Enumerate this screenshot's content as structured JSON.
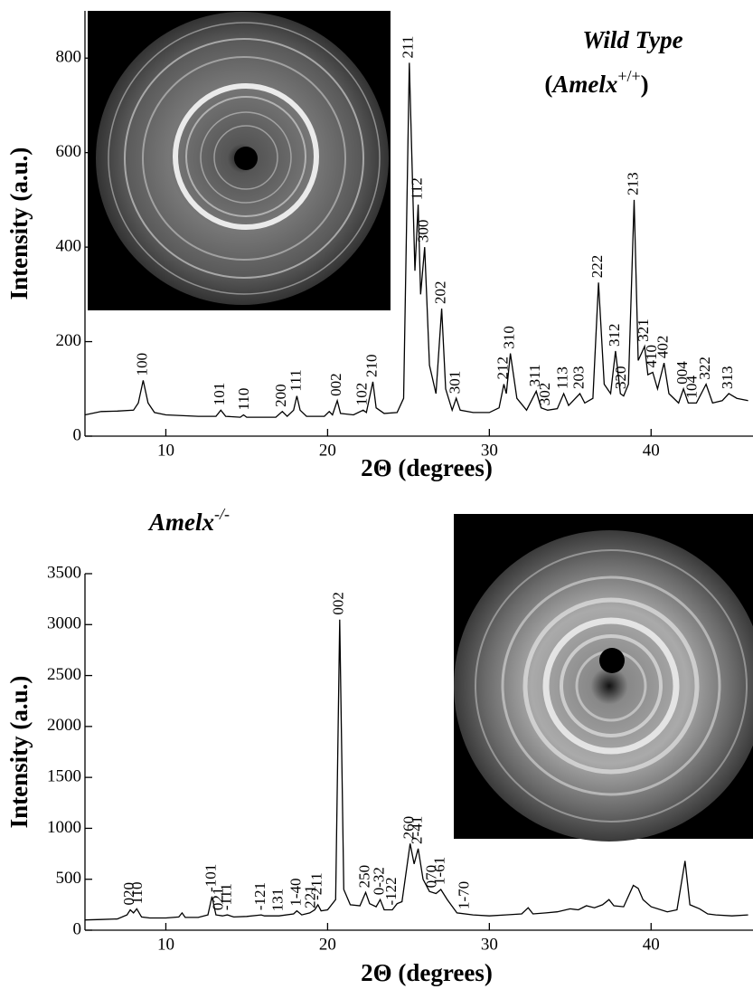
{
  "chart_data": [
    {
      "type": "line",
      "color": "#000000",
      "x_label": "2Θ (degrees)",
      "y_label": "Intensity (a.u.)",
      "xlim": [
        5,
        46.3
      ],
      "ylim": [
        0,
        900
      ],
      "xticks": [
        10,
        20,
        30,
        40
      ],
      "yticks": [
        0,
        200,
        400,
        600,
        800
      ],
      "annotation": "Wild Type",
      "genotype": {
        "prefix": "(",
        "name": "Amelx",
        "sup": "+/+",
        "suffix": ")"
      },
      "x": [
        5,
        6,
        7,
        8,
        8.3,
        8.6,
        8.9,
        9.3,
        10,
        12,
        13.1,
        13.4,
        13.7,
        14.6,
        14.8,
        15,
        16.8,
        17.2,
        17.5,
        17.9,
        18.1,
        18.3,
        18.7,
        19.8,
        20.1,
        20.3,
        20.6,
        20.8,
        21.6,
        22.2,
        22.4,
        22.8,
        23.0,
        23.5,
        24.3,
        24.7,
        25.05,
        25.4,
        25.6,
        25.75,
        26.0,
        26.3,
        26.7,
        27.05,
        27.3,
        27.7,
        27.95,
        28.2,
        29,
        30,
        30.6,
        30.9,
        31.05,
        31.3,
        31.7,
        32.3,
        32.9,
        33.2,
        33.6,
        34.2,
        34.6,
        34.9,
        35.6,
        35.9,
        36.4,
        36.75,
        37.1,
        37.5,
        37.8,
        38.1,
        38.3,
        38.6,
        38.95,
        39.2,
        39.6,
        39.8,
        40.1,
        40.4,
        40.8,
        41.1,
        41.7,
        42.0,
        42.3,
        42.8,
        43.4,
        43.8,
        44.4,
        44.8,
        45.3,
        46
      ],
      "values": [
        45,
        52,
        53,
        55,
        70,
        118,
        70,
        50,
        45,
        42,
        42,
        55,
        42,
        40,
        45,
        40,
        40,
        52,
        42,
        55,
        85,
        55,
        42,
        42,
        52,
        45,
        75,
        48,
        45,
        55,
        50,
        115,
        60,
        48,
        50,
        80,
        790,
        350,
        490,
        300,
        400,
        150,
        90,
        270,
        100,
        55,
        80,
        55,
        50,
        50,
        60,
        110,
        90,
        175,
        80,
        55,
        95,
        60,
        55,
        58,
        90,
        65,
        90,
        70,
        80,
        325,
        110,
        90,
        180,
        90,
        85,
        110,
        500,
        160,
        190,
        130,
        135,
        100,
        155,
        90,
        70,
        100,
        70,
        70,
        110,
        70,
        75,
        90,
        80,
        75
      ],
      "peak_labels": [
        {
          "text": "100",
          "x": 8.6,
          "y": 118
        },
        {
          "text": "101",
          "x": 13.4,
          "y": 55
        },
        {
          "text": "110",
          "x": 14.9,
          "y": 45
        },
        {
          "text": "200",
          "x": 17.2,
          "y": 52
        },
        {
          "text": "111",
          "x": 18.1,
          "y": 85
        },
        {
          "text": "002",
          "x": 20.6,
          "y": 75
        },
        {
          "text": "102",
          "x": 22.2,
          "y": 55
        },
        {
          "text": "210",
          "x": 22.8,
          "y": 115
        },
        {
          "text": "211",
          "x": 25.05,
          "y": 790
        },
        {
          "text": "112",
          "x": 25.6,
          "y": 490
        },
        {
          "text": "300",
          "x": 26.0,
          "y": 400
        },
        {
          "text": "202",
          "x": 27.05,
          "y": 270
        },
        {
          "text": "301",
          "x": 27.95,
          "y": 80
        },
        {
          "text": "212",
          "x": 30.9,
          "y": 110
        },
        {
          "text": "310",
          "x": 31.3,
          "y": 175
        },
        {
          "text": "311",
          "x": 32.9,
          "y": 95
        },
        {
          "text": "302",
          "x": 33.5,
          "y": 55
        },
        {
          "text": "113",
          "x": 34.6,
          "y": 90
        },
        {
          "text": "203",
          "x": 35.6,
          "y": 90
        },
        {
          "text": "222",
          "x": 36.75,
          "y": 325
        },
        {
          "text": "312",
          "x": 37.8,
          "y": 180
        },
        {
          "text": "320",
          "x": 38.2,
          "y": 90
        },
        {
          "text": "213",
          "x": 38.95,
          "y": 500
        },
        {
          "text": "321",
          "x": 39.6,
          "y": 190
        },
        {
          "text": "410",
          "x": 40.1,
          "y": 135
        },
        {
          "text": "402",
          "x": 40.8,
          "y": 155
        },
        {
          "text": "004",
          "x": 42.0,
          "y": 100
        },
        {
          "text": "104",
          "x": 42.6,
          "y": 70
        },
        {
          "text": "322",
          "x": 43.4,
          "y": 110
        },
        {
          "text": "313",
          "x": 44.8,
          "y": 90
        }
      ]
    },
    {
      "type": "line",
      "color": "#000000",
      "x_label": "2Θ (degrees)",
      "y_label": "Intensity (a.u.)",
      "xlim": [
        5,
        46.3
      ],
      "ylim": [
        0,
        3500
      ],
      "xticks": [
        10,
        20,
        30,
        40
      ],
      "yticks": [
        0,
        500,
        1000,
        1500,
        2000,
        2500,
        3000,
        3500
      ],
      "genotype": {
        "name": "Amelx",
        "sup": "-/-"
      },
      "x": [
        5,
        6,
        7,
        7.6,
        7.8,
        8.0,
        8.2,
        8.5,
        9,
        10,
        10.8,
        11,
        11.2,
        12,
        12.6,
        12.85,
        13.1,
        13.5,
        13.8,
        14.2,
        15,
        15.9,
        16.1,
        17,
        17.9,
        18.1,
        18.4,
        18.9,
        19.2,
        19.4,
        19.6,
        20,
        20.5,
        20.75,
        21,
        21.4,
        22,
        22.35,
        22.6,
        23.0,
        23.25,
        23.5,
        24,
        24.3,
        24.6,
        25.1,
        25.35,
        25.6,
        25.9,
        26.3,
        26.7,
        27,
        27.4,
        28,
        29,
        30,
        31,
        32,
        32.4,
        32.7,
        33.5,
        34.2,
        35,
        35.5,
        36,
        36.5,
        37,
        37.4,
        37.7,
        38.3,
        38.9,
        39.2,
        39.5,
        40,
        41,
        41.6,
        42.1,
        42.4,
        43,
        43.5,
        44,
        45,
        46
      ],
      "values": [
        100,
        105,
        110,
        150,
        200,
        170,
        210,
        130,
        120,
        120,
        130,
        170,
        125,
        125,
        150,
        330,
        150,
        140,
        150,
        130,
        135,
        150,
        140,
        140,
        160,
        190,
        150,
        170,
        200,
        250,
        190,
        200,
        300,
        3050,
        400,
        250,
        240,
        370,
        260,
        230,
        300,
        200,
        200,
        260,
        280,
        850,
        650,
        800,
        500,
        380,
        360,
        400,
        300,
        170,
        150,
        140,
        150,
        160,
        220,
        160,
        170,
        180,
        210,
        200,
        240,
        220,
        250,
        300,
        240,
        230,
        440,
        410,
        300,
        230,
        180,
        200,
        680,
        250,
        210,
        160,
        150,
        140,
        150
      ],
      "peak_labels": [
        {
          "text": "020",
          "x": 7.8,
          "y": 200
        },
        {
          "text": "110",
          "x": 8.3,
          "y": 210
        },
        {
          "text": "-101",
          "x": 12.85,
          "y": 330
        },
        {
          "text": "021",
          "x": 13.3,
          "y": 150
        },
        {
          "text": "-111",
          "x": 13.8,
          "y": 150
        },
        {
          "text": "-121",
          "x": 15.9,
          "y": 150
        },
        {
          "text": "131",
          "x": 17.0,
          "y": 140
        },
        {
          "text": "1-40",
          "x": 18.1,
          "y": 190
        },
        {
          "text": "221",
          "x": 19.0,
          "y": 170
        },
        {
          "text": "-211",
          "x": 19.4,
          "y": 250
        },
        {
          "text": "002",
          "x": 20.75,
          "y": 3050
        },
        {
          "text": "250",
          "x": 22.35,
          "y": 370
        },
        {
          "text": "0-32",
          "x": 23.25,
          "y": 300
        },
        {
          "text": "-122",
          "x": 24.0,
          "y": 200
        },
        {
          "text": "260",
          "x": 25.1,
          "y": 850
        },
        {
          "text": "2-41",
          "x": 25.6,
          "y": 800
        },
        {
          "text": "070",
          "x": 26.5,
          "y": 370
        },
        {
          "text": "1-61",
          "x": 27.0,
          "y": 400
        },
        {
          "text": "1-70",
          "x": 28.5,
          "y": 160
        }
      ]
    }
  ]
}
